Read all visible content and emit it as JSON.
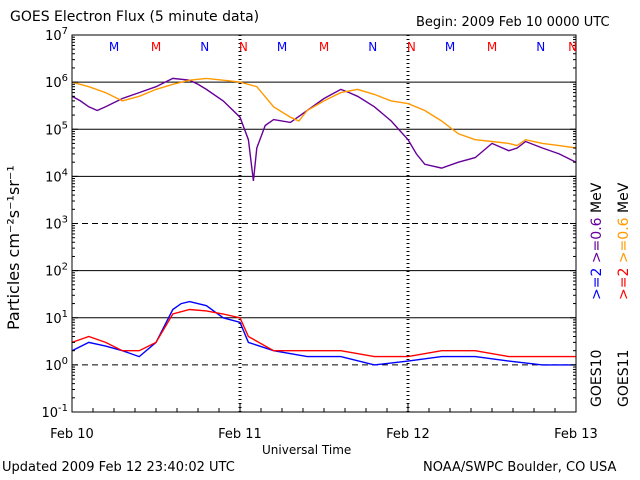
{
  "header": {
    "title": "GOES Electron Flux (5 minute data)",
    "begin": "Begin: 2009 Feb 10 0000 UTC"
  },
  "footer": {
    "updated": "Updated 2009 Feb 12 23:40:02 UTC",
    "credit": "NOAA/SWPC Boulder, CO USA"
  },
  "chart_data": {
    "type": "line",
    "xlabel": "Universal Time",
    "ylabel": "Particles cm⁻²s⁻¹sr⁻¹",
    "yscale": "log",
    "ylim": [
      0.1,
      10000000
    ],
    "y_ticks": [
      {
        "value": 0.1,
        "base": "10",
        "exp": "-1"
      },
      {
        "value": 1,
        "base": "10",
        "exp": "0"
      },
      {
        "value": 10,
        "base": "10",
        "exp": "1"
      },
      {
        "value": 100,
        "base": "10",
        "exp": "2"
      },
      {
        "value": 1000,
        "base": "10",
        "exp": "3"
      },
      {
        "value": 10000,
        "base": "10",
        "exp": "4"
      },
      {
        "value": 100000,
        "base": "10",
        "exp": "5"
      },
      {
        "value": 1000000,
        "base": "10",
        "exp": "6"
      },
      {
        "value": 10000000,
        "base": "10",
        "exp": "7"
      }
    ],
    "xlim_days": [
      0,
      3
    ],
    "x_ticks": [
      {
        "day": 0,
        "label": "Feb 10"
      },
      {
        "day": 1,
        "label": "Feb 11"
      },
      {
        "day": 2,
        "label": "Feb 12"
      },
      {
        "day": 3,
        "label": "Feb 13"
      }
    ],
    "grid": {
      "solid_decades": [
        10,
        100,
        10000,
        100000,
        1000000
      ],
      "dashed_decades": [
        1,
        1000
      ]
    },
    "noon_midnight_markers": [
      {
        "day": 0.25,
        "label": "M",
        "color": "#0000ff"
      },
      {
        "day": 0.5,
        "label": "M",
        "color": "#ff0000"
      },
      {
        "day": 0.79,
        "label": "N",
        "color": "#0000ff"
      },
      {
        "day": 1.02,
        "label": "N",
        "color": "#ff0000"
      },
      {
        "day": 1.25,
        "label": "M",
        "color": "#0000ff"
      },
      {
        "day": 1.5,
        "label": "M",
        "color": "#ff0000"
      },
      {
        "day": 1.79,
        "label": "N",
        "color": "#0000ff"
      },
      {
        "day": 2.02,
        "label": "N",
        "color": "#ff0000"
      },
      {
        "day": 2.25,
        "label": "M",
        "color": "#0000ff"
      },
      {
        "day": 2.5,
        "label": "M",
        "color": "#ff0000"
      },
      {
        "day": 2.79,
        "label": "N",
        "color": "#0000ff"
      },
      {
        "day": 3.02,
        "label": "N",
        "color": "#ff0000"
      }
    ],
    "legend": {
      "goes10": "GOES10",
      "goes11": "GOES11",
      "goes10_ge2": ">=2",
      "goes10_ge06": ">=0.6",
      "goes11_ge2": ">=2",
      "goes11_ge06": ">=0.6",
      "unit": "MeV"
    },
    "series": [
      {
        "name": "GOES10 >=0.6 MeV",
        "color": "#660099",
        "x": [
          0,
          0.05,
          0.1,
          0.15,
          0.2,
          0.3,
          0.4,
          0.5,
          0.6,
          0.7,
          0.75,
          0.8,
          0.9,
          1.0,
          1.05,
          1.08,
          1.1,
          1.15,
          1.2,
          1.3,
          1.4,
          1.5,
          1.6,
          1.65,
          1.7,
          1.8,
          1.9,
          2.0,
          2.05,
          2.1,
          2.2,
          2.3,
          2.4,
          2.5,
          2.6,
          2.65,
          2.7,
          2.8,
          2.9,
          3.0
        ],
        "y": [
          500000,
          400000,
          300000,
          250000,
          300000,
          450000,
          600000,
          800000,
          1200000,
          1100000,
          900000,
          700000,
          400000,
          180000,
          60000,
          8000,
          40000,
          120000,
          160000,
          140000,
          250000,
          450000,
          700000,
          600000,
          500000,
          300000,
          150000,
          60000,
          30000,
          18000,
          15000,
          20000,
          25000,
          50000,
          35000,
          40000,
          55000,
          40000,
          30000,
          20000
        ]
      },
      {
        "name": "GOES11 >=0.6 MeV",
        "color": "#ff9900",
        "x": [
          0,
          0.1,
          0.2,
          0.3,
          0.4,
          0.5,
          0.6,
          0.7,
          0.8,
          0.9,
          1.0,
          1.1,
          1.2,
          1.3,
          1.35,
          1.4,
          1.5,
          1.6,
          1.7,
          1.8,
          1.9,
          2.0,
          2.1,
          2.2,
          2.3,
          2.4,
          2.5,
          2.6,
          2.65,
          2.7,
          2.8,
          2.9,
          3.0
        ],
        "y": [
          1000000,
          800000,
          600000,
          400000,
          500000,
          700000,
          900000,
          1100000,
          1200000,
          1100000,
          1000000,
          800000,
          300000,
          180000,
          150000,
          250000,
          400000,
          600000,
          700000,
          550000,
          400000,
          350000,
          250000,
          150000,
          80000,
          60000,
          55000,
          50000,
          45000,
          60000,
          50000,
          45000,
          40000
        ]
      },
      {
        "name": "GOES10 >=2 MeV",
        "color": "#0000ff",
        "x": [
          0,
          0.1,
          0.2,
          0.3,
          0.4,
          0.5,
          0.6,
          0.65,
          0.7,
          0.8,
          0.9,
          1.0,
          1.05,
          1.2,
          1.4,
          1.6,
          1.8,
          2.0,
          2.2,
          2.4,
          2.6,
          2.8,
          3.0
        ],
        "y": [
          2,
          3,
          2.5,
          2,
          1.5,
          3,
          15,
          20,
          22,
          18,
          10,
          8,
          3,
          2,
          1.5,
          1.5,
          1,
          1.2,
          1.5,
          1.5,
          1.2,
          1,
          1
        ]
      },
      {
        "name": "GOES11 >=2 MeV",
        "color": "#ff0000",
        "x": [
          0,
          0.1,
          0.2,
          0.3,
          0.4,
          0.5,
          0.6,
          0.7,
          0.8,
          0.9,
          1.0,
          1.05,
          1.2,
          1.4,
          1.6,
          1.8,
          2.0,
          2.2,
          2.4,
          2.6,
          2.8,
          3.0
        ],
        "y": [
          3,
          4,
          3,
          2,
          2,
          3,
          12,
          15,
          14,
          12,
          10,
          4,
          2,
          2,
          2,
          1.5,
          1.5,
          2,
          2,
          1.5,
          1.5,
          1.5
        ]
      }
    ]
  }
}
